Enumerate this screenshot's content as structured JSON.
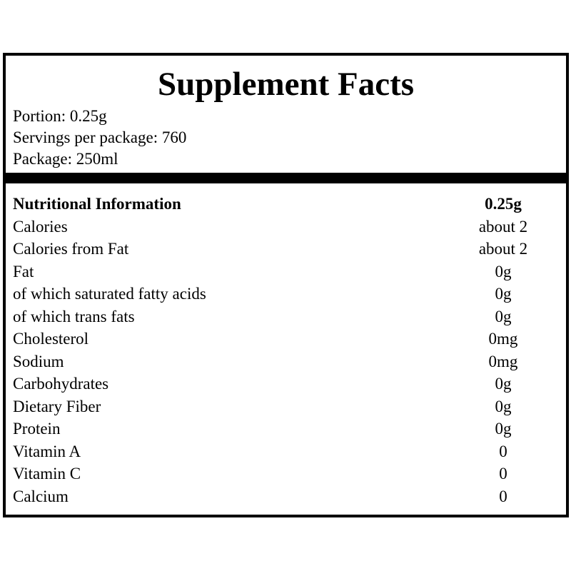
{
  "label": {
    "title": "Supplement Facts",
    "meta": {
      "portion": "Portion: 0.25g",
      "servings": "Servings per package: 760",
      "package": "Package: 250ml"
    },
    "table": {
      "header": {
        "label": "Nutritional Information",
        "value": "0.25g"
      },
      "rows": [
        {
          "label": "Calories",
          "value": "about 2"
        },
        {
          "label": "Calories from Fat",
          "value": "about 2"
        },
        {
          "label": "Fat",
          "value": "0g"
        },
        {
          "label": "of which saturated fatty acids",
          "value": "0g"
        },
        {
          "label": "of which trans fats",
          "value": "0g"
        },
        {
          "label": "Cholesterol",
          "value": "0mg"
        },
        {
          "label": "Sodium",
          "value": "0mg"
        },
        {
          "label": "Carbohydrates",
          "value": "0g"
        },
        {
          "label": "Dietary Fiber",
          "value": "0g"
        },
        {
          "label": "Protein",
          "value": "0g"
        },
        {
          "label": "Vitamin A",
          "value": "0"
        },
        {
          "label": "Vitamin C",
          "value": "0"
        },
        {
          "label": "Calcium",
          "value": "0"
        }
      ]
    },
    "colors": {
      "border": "#000000",
      "bar": "#000000",
      "text": "#000000",
      "background": "#ffffff"
    }
  }
}
